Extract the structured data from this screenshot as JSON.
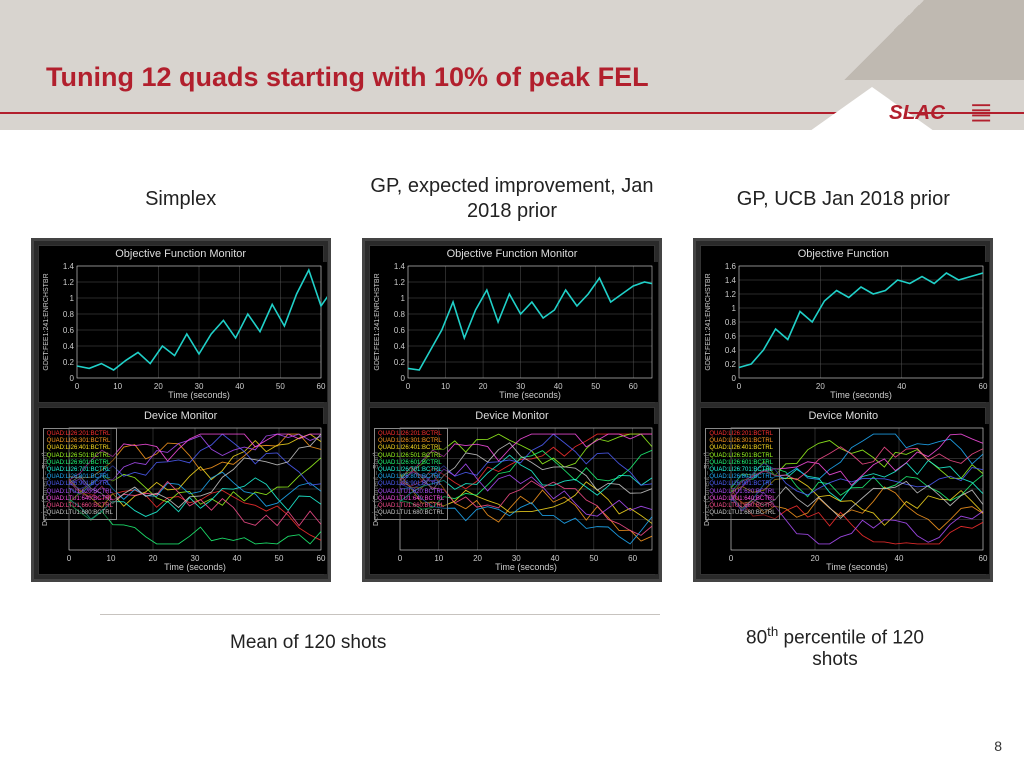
{
  "slide": {
    "title": "Tuning 12 quads starting with 10% of peak FEL",
    "page_number": "8",
    "logo_text": "SLAC",
    "logo_color": "#b21f2d",
    "header_bg": "#d8d4cf",
    "rule_color": "#b21f2d"
  },
  "columns": [
    {
      "header": "Simplex"
    },
    {
      "header": "GP, expected\nimprovement,\nJan 2018 prior"
    },
    {
      "header": "GP, UCB\nJan 2018 prior"
    }
  ],
  "captions": {
    "left": "Mean of 120 shots",
    "right_html": "80<sup>th</sup> percentile of 120 shots"
  },
  "chart_common": {
    "bg": "#000000",
    "grid_color": "#555555",
    "axis_color": "#cccccc",
    "line_color_obj": "#20d0c8",
    "font_color": "#dddddd",
    "title_fontsize": 11,
    "tick_fontsize": 8,
    "line_width": 1.6,
    "device_line_width": 0.9
  },
  "objective_charts": [
    {
      "title": "Objective Function Monitor",
      "xlabel": "Time (seconds)",
      "ylabel": "GDET:FEE1:241:ENRCHSTBR",
      "xlim": [
        0,
        60
      ],
      "xtick_step": 10,
      "ylim": [
        0,
        1.4
      ],
      "ytick_step": 0.2,
      "x": [
        0,
        3,
        6,
        9,
        12,
        15,
        18,
        21,
        24,
        27,
        30,
        33,
        36,
        39,
        42,
        45,
        48,
        51,
        54,
        57,
        60,
        63
      ],
      "y": [
        0.15,
        0.12,
        0.18,
        0.1,
        0.22,
        0.32,
        0.18,
        0.4,
        0.28,
        0.55,
        0.3,
        0.55,
        0.72,
        0.5,
        0.8,
        0.58,
        0.92,
        0.65,
        1.05,
        1.35,
        0.9,
        1.12
      ]
    },
    {
      "title": "Objective Function Monitor",
      "xlabel": "Time (seconds)",
      "ylabel": "GDET:FEE1:241:ENRCHSTBR",
      "xlim": [
        0,
        65
      ],
      "xtick_step": 10,
      "ylim": [
        0,
        1.4
      ],
      "ytick_step": 0.2,
      "x": [
        0,
        3,
        6,
        9,
        12,
        15,
        18,
        21,
        24,
        27,
        30,
        33,
        36,
        39,
        42,
        45,
        48,
        51,
        54,
        57,
        60,
        63,
        65
      ],
      "y": [
        0.12,
        0.1,
        0.35,
        0.6,
        0.95,
        0.5,
        0.85,
        1.1,
        0.7,
        1.05,
        0.8,
        0.95,
        0.75,
        0.85,
        1.1,
        0.9,
        1.05,
        1.25,
        0.95,
        1.05,
        1.15,
        1.2,
        1.18
      ]
    },
    {
      "title": "Objective Function",
      "xlabel": "Time (seconds)",
      "ylabel": "GDET:FEE1:241:ENRCHSTBR",
      "xlim": [
        0,
        60
      ],
      "xtick_step": 20,
      "ylim": [
        0,
        1.6
      ],
      "ytick_step": 0.2,
      "x": [
        0,
        3,
        6,
        9,
        12,
        15,
        18,
        21,
        24,
        27,
        30,
        33,
        36,
        39,
        42,
        45,
        48,
        51,
        54,
        57,
        60
      ],
      "y": [
        0.15,
        0.2,
        0.4,
        0.7,
        0.55,
        0.95,
        0.8,
        1.1,
        1.25,
        1.15,
        1.3,
        1.2,
        1.25,
        1.4,
        1.35,
        1.45,
        1.35,
        1.5,
        1.4,
        1.45,
        1.5
      ]
    }
  ],
  "device_charts": [
    {
      "title": "Device Monitor",
      "xlabel": "Time (seconds)",
      "ylabel": "Device (Current – Start)",
      "xlim": [
        0,
        60
      ],
      "xtick_step": 10,
      "ylim": [
        -3,
        3
      ]
    },
    {
      "title": "Device Monitor",
      "xlabel": "Time (seconds)",
      "ylabel": "Device (Current – Start)",
      "xlim": [
        0,
        65
      ],
      "xtick_step": 10,
      "ylim": [
        -2,
        2
      ]
    },
    {
      "title": "Device Monito",
      "xlabel": "Time (seconds)",
      "ylabel": "Device (Current – Start)",
      "xlim": [
        0,
        60
      ],
      "xtick_step": 20,
      "ylim": [
        -2,
        2
      ]
    }
  ],
  "device_legend": [
    {
      "label": "QUAD:LI26:201:BCTRL",
      "color": "#ff3030"
    },
    {
      "label": "QUAD:LI26:301:BCTRL",
      "color": "#ff9b20"
    },
    {
      "label": "QUAD:LI26:401:BCTRL",
      "color": "#ffe020"
    },
    {
      "label": "QUAD:LI26:501:BCTRL",
      "color": "#9cff20"
    },
    {
      "label": "QUAD:LI26:601:BCTRL",
      "color": "#20ff7a"
    },
    {
      "label": "QUAD:LI26:701:BCTRL",
      "color": "#20ffe0"
    },
    {
      "label": "QUAD:LI26:801:BCTRL",
      "color": "#20b0ff"
    },
    {
      "label": "QUAD:LI26:901:BCTRL",
      "color": "#5060ff"
    },
    {
      "label": "QUAD:LTU1:620:BCTRL",
      "color": "#b050ff"
    },
    {
      "label": "QUAD:LTU1:640:BCTRL",
      "color": "#ff50e8"
    },
    {
      "label": "QUAD:LTU1:660:BCTRL",
      "color": "#ff5090"
    },
    {
      "label": "QUAD:LTU1:680:BCTRL",
      "color": "#cccccc"
    }
  ],
  "device_series_seeds": [
    [
      3,
      7,
      1,
      9,
      5,
      11,
      2,
      8,
      4,
      10,
      6,
      0
    ],
    [
      5,
      1,
      9,
      3,
      11,
      7,
      0,
      8,
      2,
      10,
      4,
      6
    ],
    [
      2,
      10,
      4,
      8,
      0,
      6,
      11,
      3,
      9,
      1,
      7,
      5
    ]
  ]
}
